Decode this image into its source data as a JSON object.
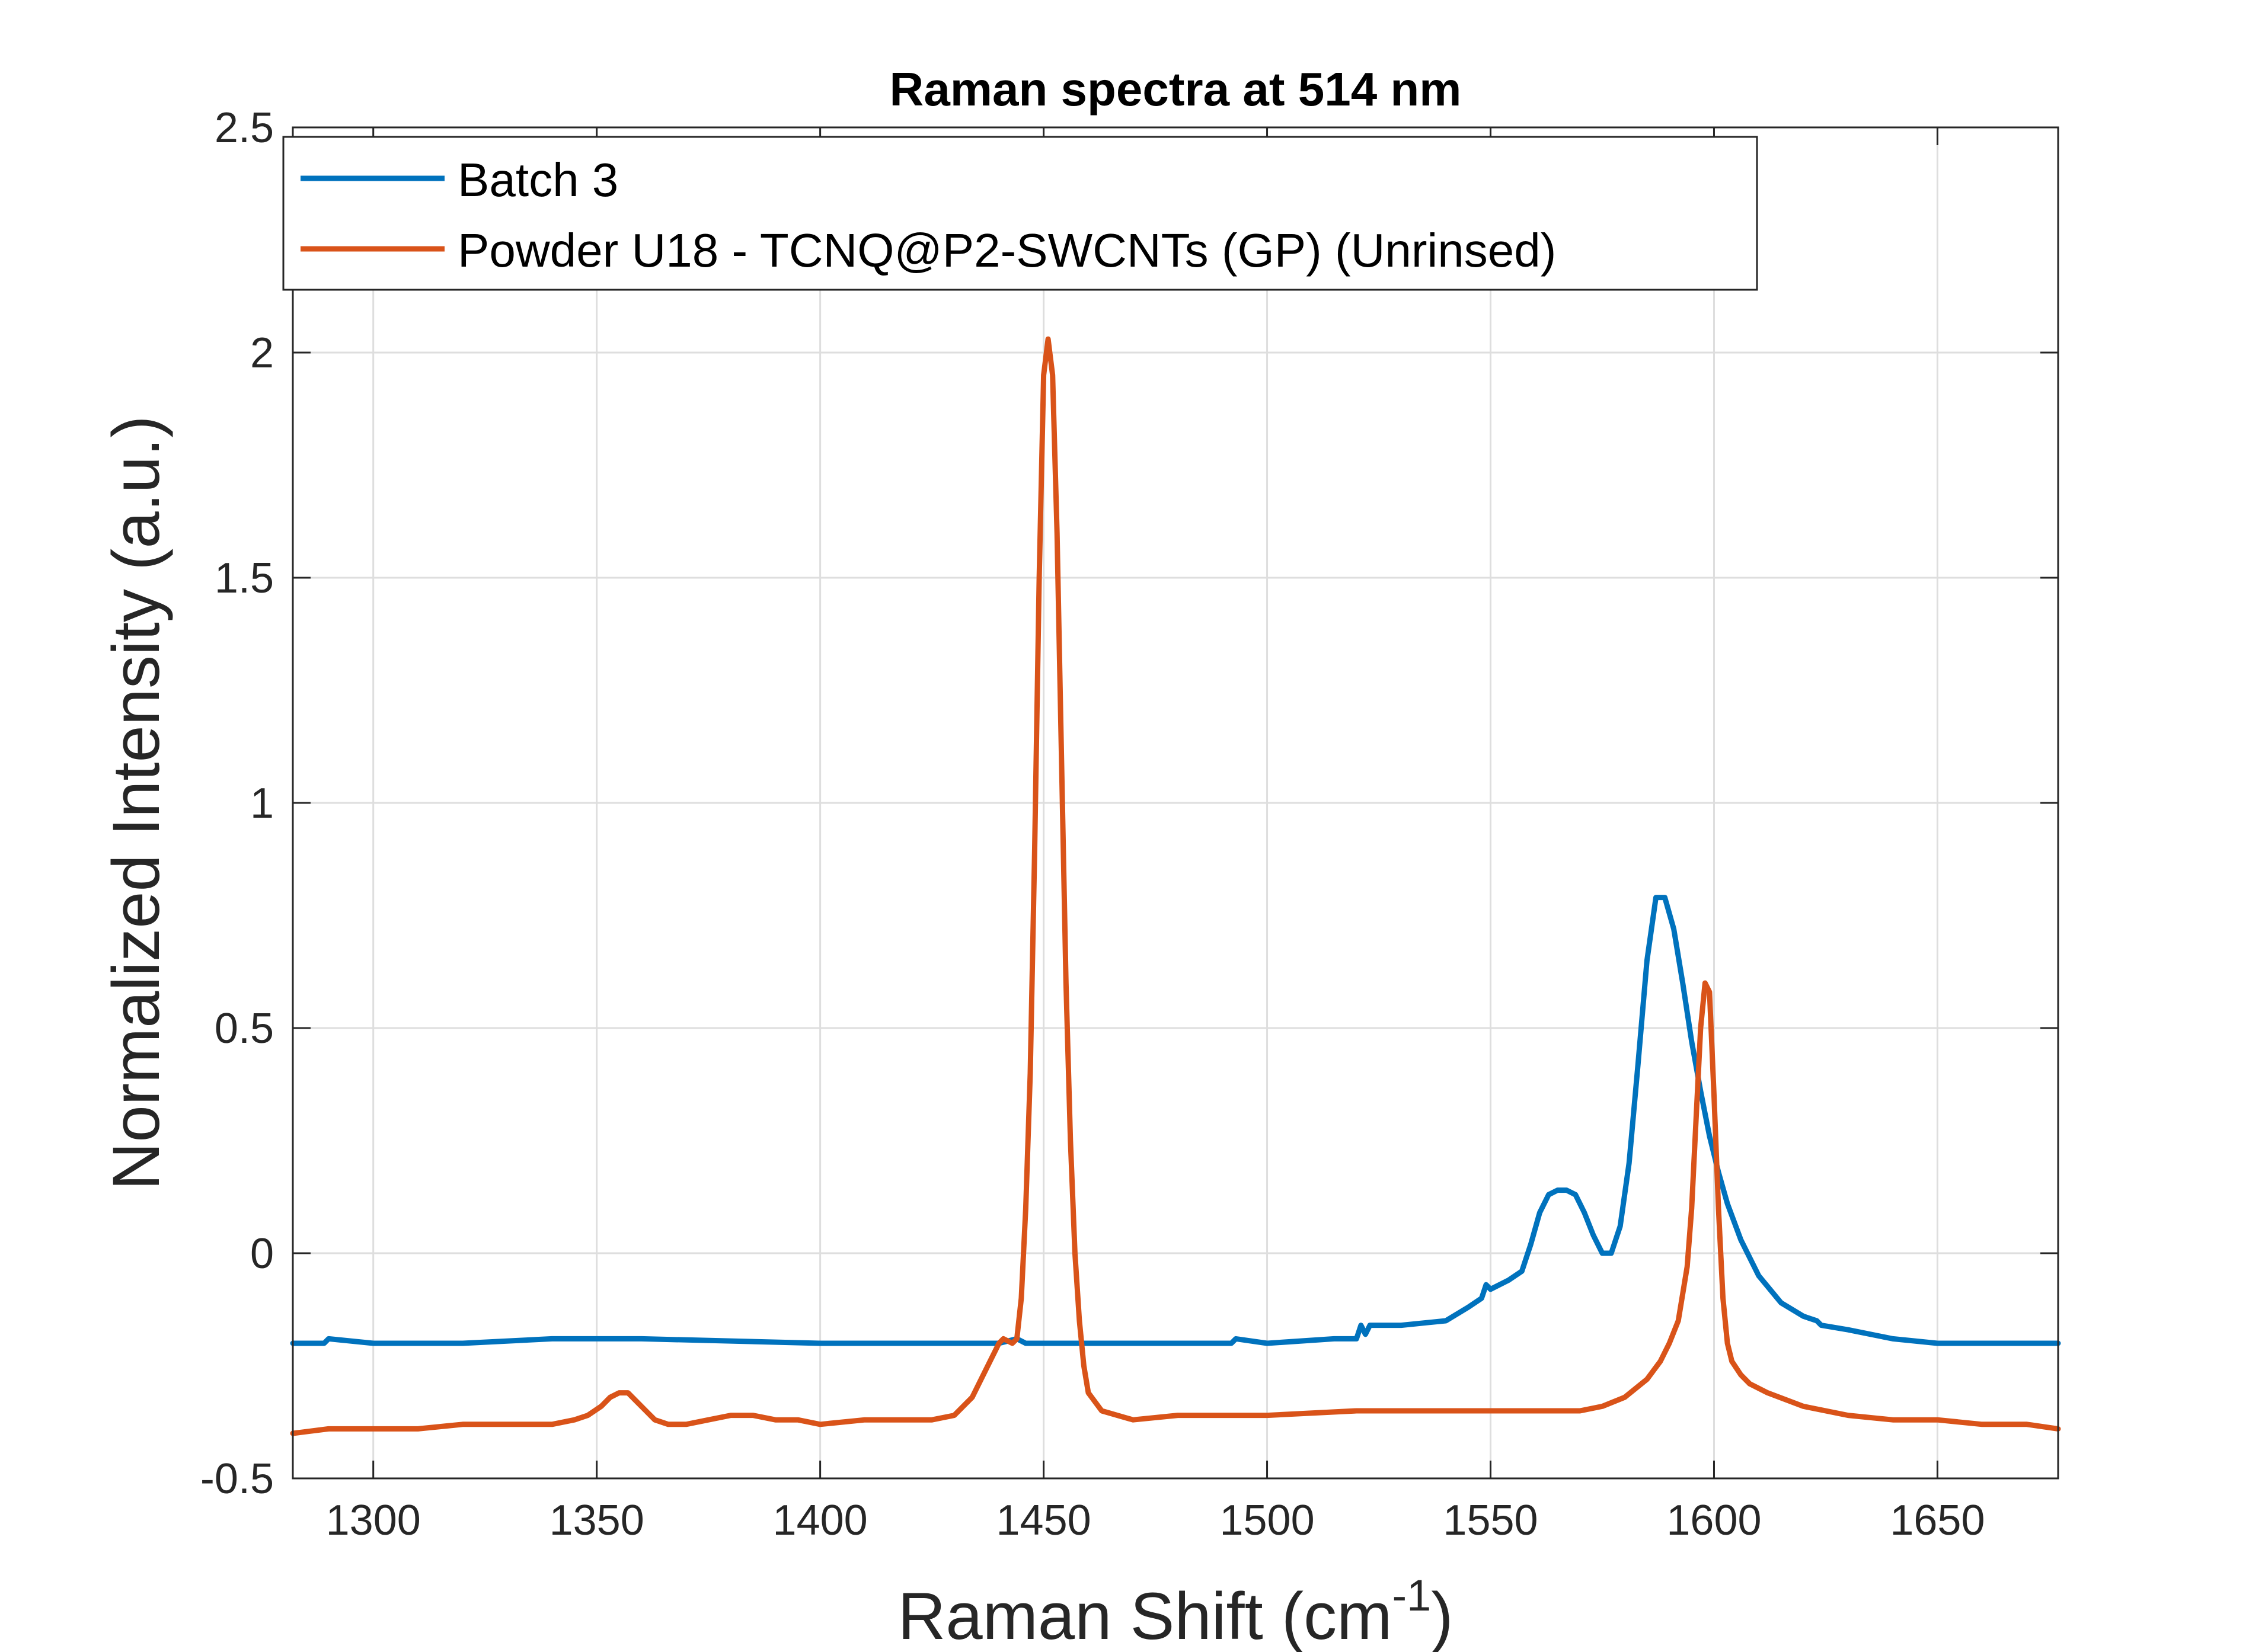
{
  "chart_data": {
    "type": "line",
    "title": "Raman spectra at 514 nm",
    "xlabel": "Raman Shift (cm",
    "xlabel_superscript": "-1",
    "xlabel_suffix": ")",
    "ylabel": "Normalized Intensity (a.u.)",
    "xlim": [
      1282,
      1677
    ],
    "ylim": [
      -0.5,
      2.5
    ],
    "xticks": [
      1300,
      1350,
      1400,
      1450,
      1500,
      1550,
      1600,
      1650
    ],
    "xtick_labels": [
      "1300",
      "1350",
      "1400",
      "1450",
      "1500",
      "1550",
      "1600",
      "1650"
    ],
    "yticks": [
      -0.5,
      0,
      0.5,
      1,
      1.5,
      2,
      2.5
    ],
    "ytick_labels": [
      "-0.5",
      "0",
      "0.5",
      "1",
      "1.5",
      "2",
      "2.5"
    ],
    "grid": true,
    "legend_position": "top-left",
    "colors": {
      "axis": "#262626",
      "grid": "#dedede",
      "title": "#000000"
    },
    "series": [
      {
        "name": "Batch 3",
        "color": "#0072bd",
        "x": [
          1282,
          1289,
          1290,
          1300,
          1320,
          1340,
          1360,
          1400,
          1440,
          1444,
          1446,
          1450,
          1480,
          1492,
          1493,
          1500,
          1515,
          1520,
          1521,
          1522,
          1523,
          1530,
          1540,
          1545,
          1548,
          1549,
          1550,
          1554,
          1557,
          1559,
          1561,
          1563,
          1565,
          1567,
          1569,
          1571,
          1573,
          1575,
          1577,
          1579,
          1581,
          1583,
          1585,
          1587,
          1589,
          1591,
          1593,
          1595,
          1597,
          1599,
          1601,
          1603,
          1606,
          1610,
          1615,
          1620,
          1623,
          1624,
          1630,
          1640,
          1650,
          1660,
          1677
        ],
        "y": [
          -0.2,
          -0.2,
          -0.19,
          -0.2,
          -0.2,
          -0.19,
          -0.19,
          -0.2,
          -0.2,
          -0.19,
          -0.2,
          -0.2,
          -0.2,
          -0.2,
          -0.19,
          -0.2,
          -0.19,
          -0.19,
          -0.16,
          -0.18,
          -0.16,
          -0.16,
          -0.15,
          -0.12,
          -0.1,
          -0.07,
          -0.08,
          -0.06,
          -0.04,
          0.02,
          0.09,
          0.13,
          0.14,
          0.14,
          0.13,
          0.09,
          0.04,
          0.0,
          0.0,
          0.06,
          0.2,
          0.42,
          0.65,
          0.79,
          0.79,
          0.72,
          0.6,
          0.47,
          0.36,
          0.26,
          0.18,
          0.11,
          0.03,
          -0.05,
          -0.11,
          -0.14,
          -0.15,
          -0.16,
          -0.17,
          -0.19,
          -0.2,
          -0.2,
          -0.2
        ]
      },
      {
        "name": "Powder U18 - TCNQ@P2-SWCNTs (GP) (Unrinsed)",
        "color": "#d95319",
        "x": [
          1282,
          1290,
          1300,
          1310,
          1320,
          1330,
          1340,
          1345,
          1348,
          1351,
          1353,
          1355,
          1357,
          1359,
          1361,
          1363,
          1366,
          1370,
          1375,
          1380,
          1385,
          1390,
          1395,
          1400,
          1410,
          1420,
          1425,
          1430,
          1434,
          1437,
          1439,
          1440,
          1441,
          1443,
          1444,
          1445,
          1446,
          1447,
          1448,
          1449,
          1450,
          1451,
          1452,
          1453,
          1454,
          1455,
          1456,
          1457,
          1458,
          1459,
          1460,
          1463,
          1470,
          1480,
          1490,
          1500,
          1520,
          1540,
          1560,
          1570,
          1575,
          1580,
          1585,
          1588,
          1590,
          1592,
          1594,
          1595,
          1596,
          1597,
          1598,
          1599,
          1600,
          1601,
          1602,
          1603,
          1604,
          1606,
          1608,
          1612,
          1620,
          1630,
          1640,
          1650,
          1660,
          1670,
          1677
        ],
        "y": [
          -0.4,
          -0.39,
          -0.39,
          -0.39,
          -0.38,
          -0.38,
          -0.38,
          -0.37,
          -0.36,
          -0.34,
          -0.32,
          -0.31,
          -0.31,
          -0.33,
          -0.35,
          -0.37,
          -0.38,
          -0.38,
          -0.37,
          -0.36,
          -0.36,
          -0.37,
          -0.37,
          -0.38,
          -0.37,
          -0.37,
          -0.37,
          -0.36,
          -0.32,
          -0.26,
          -0.22,
          -0.2,
          -0.19,
          -0.2,
          -0.19,
          -0.1,
          0.1,
          0.4,
          0.9,
          1.5,
          1.95,
          2.03,
          1.95,
          1.6,
          1.1,
          0.6,
          0.25,
          0.0,
          -0.15,
          -0.25,
          -0.31,
          -0.35,
          -0.37,
          -0.36,
          -0.36,
          -0.36,
          -0.35,
          -0.35,
          -0.35,
          -0.35,
          -0.34,
          -0.32,
          -0.28,
          -0.24,
          -0.2,
          -0.15,
          -0.03,
          0.1,
          0.3,
          0.5,
          0.6,
          0.58,
          0.35,
          0.1,
          -0.1,
          -0.2,
          -0.24,
          -0.27,
          -0.29,
          -0.31,
          -0.34,
          -0.36,
          -0.37,
          -0.37,
          -0.38,
          -0.38,
          -0.39
        ]
      }
    ]
  }
}
